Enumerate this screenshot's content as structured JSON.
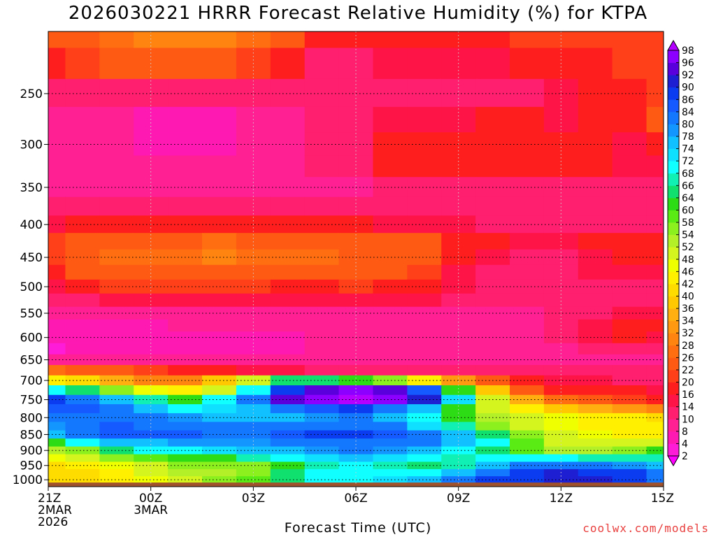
{
  "title": "2026030221 HRRR Forecast Relative Humidity (%) for KTPA",
  "credit": "coolwx.com/models",
  "chart_data": {
    "type": "heatmap",
    "title": "2026030221 HRRR Forecast Relative Humidity (%) for KTPA",
    "xlabel": "Forecast Time (UTC)",
    "ylabel": "",
    "x_hours": [
      0,
      1,
      2,
      3,
      4,
      5,
      6,
      7,
      8,
      9,
      10,
      11,
      12,
      13,
      14,
      15,
      16,
      17,
      18
    ],
    "xlim": [
      0,
      18
    ],
    "y_levels": [
      200,
      225,
      250,
      275,
      300,
      325,
      350,
      375,
      400,
      425,
      450,
      475,
      500,
      525,
      550,
      575,
      600,
      625,
      650,
      675,
      700,
      725,
      750,
      775,
      800,
      825,
      850,
      875,
      900,
      925,
      950,
      975,
      1000
    ],
    "ylim": [
      200,
      1025
    ],
    "x_ticks": [
      {
        "h": 0,
        "lines": [
          "21Z",
          "2MAR",
          "2026"
        ]
      },
      {
        "h": 3,
        "lines": [
          "00Z",
          "3MAR"
        ]
      },
      {
        "h": 6,
        "lines": [
          "03Z"
        ]
      },
      {
        "h": 9,
        "lines": [
          "06Z"
        ]
      },
      {
        "h": 12,
        "lines": [
          "09Z"
        ]
      },
      {
        "h": 15,
        "lines": [
          "12Z"
        ]
      },
      {
        "h": 18,
        "lines": [
          "15Z"
        ]
      }
    ],
    "y_ticks": [
      250,
      300,
      350,
      400,
      450,
      500,
      550,
      600,
      650,
      700,
      750,
      800,
      850,
      900,
      950,
      1000
    ],
    "y_tick_labels": [
      "250",
      "300",
      "350",
      "400",
      "450",
      "500",
      "550",
      "600",
      "650",
      "700",
      "750",
      "800",
      "850",
      "900",
      "950",
      "1000"
    ],
    "grid": true,
    "ground_level": 1010,
    "values": [
      [
        22,
        24,
        26,
        28,
        28,
        28,
        26,
        22,
        18,
        16,
        16,
        16,
        16,
        18,
        20,
        20,
        20,
        20,
        20
      ],
      [
        18,
        20,
        22,
        24,
        24,
        22,
        20,
        16,
        12,
        12,
        14,
        14,
        14,
        14,
        16,
        18,
        18,
        20,
        20
      ],
      [
        10,
        10,
        10,
        10,
        10,
        10,
        10,
        10,
        10,
        10,
        10,
        10,
        10,
        10,
        12,
        14,
        16,
        18,
        20
      ],
      [
        8,
        8,
        8,
        6,
        6,
        6,
        8,
        8,
        10,
        12,
        14,
        14,
        14,
        16,
        16,
        14,
        16,
        18,
        22
      ],
      [
        8,
        8,
        8,
        6,
        5,
        6,
        8,
        8,
        10,
        12,
        18,
        18,
        18,
        18,
        18,
        18,
        16,
        14,
        16
      ],
      [
        8,
        8,
        8,
        8,
        8,
        8,
        8,
        8,
        10,
        12,
        16,
        18,
        18,
        18,
        18,
        18,
        16,
        14,
        14
      ],
      [
        8,
        8,
        8,
        8,
        8,
        8,
        8,
        8,
        8,
        8,
        10,
        10,
        10,
        10,
        10,
        10,
        10,
        10,
        10
      ],
      [
        10,
        10,
        10,
        10,
        10,
        10,
        10,
        10,
        10,
        10,
        10,
        10,
        10,
        10,
        10,
        10,
        10,
        10,
        10
      ],
      [
        14,
        16,
        16,
        16,
        16,
        16,
        16,
        16,
        16,
        16,
        14,
        14,
        14,
        12,
        12,
        12,
        12,
        12,
        12
      ],
      [
        20,
        22,
        22,
        22,
        24,
        26,
        24,
        24,
        22,
        22,
        22,
        22,
        18,
        16,
        14,
        14,
        16,
        18,
        18
      ],
      [
        20,
        24,
        26,
        26,
        26,
        28,
        26,
        26,
        26,
        24,
        24,
        22,
        18,
        14,
        12,
        12,
        14,
        16,
        16
      ],
      [
        18,
        22,
        24,
        24,
        24,
        24,
        24,
        24,
        22,
        22,
        22,
        20,
        14,
        12,
        12,
        12,
        14,
        14,
        14
      ],
      [
        14,
        18,
        20,
        20,
        20,
        20,
        20,
        18,
        18,
        20,
        18,
        18,
        14,
        12,
        10,
        10,
        12,
        12,
        12
      ],
      [
        10,
        12,
        14,
        14,
        14,
        14,
        14,
        14,
        14,
        14,
        14,
        14,
        12,
        10,
        10,
        10,
        10,
        10,
        10
      ],
      [
        8,
        8,
        8,
        8,
        8,
        8,
        8,
        8,
        8,
        8,
        8,
        8,
        8,
        8,
        8,
        10,
        12,
        14,
        14
      ],
      [
        6,
        6,
        6,
        6,
        8,
        8,
        8,
        8,
        8,
        8,
        8,
        8,
        8,
        8,
        8,
        10,
        14,
        18,
        18
      ],
      [
        4,
        4,
        6,
        6,
        6,
        6,
        6,
        6,
        8,
        8,
        8,
        8,
        8,
        8,
        8,
        10,
        14,
        16,
        14
      ],
      [
        2,
        4,
        4,
        6,
        6,
        6,
        6,
        6,
        8,
        8,
        8,
        8,
        8,
        8,
        8,
        8,
        10,
        10,
        10
      ],
      [
        8,
        8,
        8,
        8,
        8,
        8,
        8,
        8,
        8,
        8,
        8,
        8,
        8,
        8,
        8,
        8,
        8,
        8,
        8
      ],
      [
        26,
        24,
        22,
        20,
        18,
        16,
        14,
        14,
        12,
        12,
        12,
        12,
        12,
        10,
        10,
        10,
        10,
        10,
        10
      ],
      [
        44,
        40,
        34,
        30,
        30,
        36,
        50,
        64,
        64,
        62,
        56,
        42,
        32,
        22,
        16,
        14,
        14,
        12,
        12
      ],
      [
        70,
        64,
        54,
        46,
        44,
        50,
        70,
        86,
        94,
        96,
        94,
        84,
        60,
        36,
        24,
        18,
        16,
        16,
        14
      ],
      [
        86,
        82,
        74,
        66,
        60,
        68,
        80,
        92,
        96,
        98,
        96,
        90,
        72,
        48,
        34,
        26,
        22,
        20,
        18
      ],
      [
        84,
        84,
        80,
        74,
        70,
        72,
        76,
        80,
        84,
        86,
        82,
        74,
        60,
        50,
        42,
        36,
        34,
        32,
        30
      ],
      [
        80,
        82,
        82,
        80,
        78,
        76,
        76,
        76,
        78,
        80,
        76,
        68,
        60,
        52,
        48,
        46,
        44,
        42,
        40
      ],
      [
        78,
        82,
        84,
        82,
        82,
        80,
        80,
        80,
        82,
        82,
        80,
        72,
        66,
        56,
        50,
        46,
        44,
        44,
        42
      ],
      [
        74,
        80,
        84,
        84,
        84,
        82,
        82,
        84,
        86,
        86,
        84,
        80,
        74,
        64,
        54,
        48,
        46,
        44,
        44
      ],
      [
        60,
        68,
        74,
        76,
        78,
        78,
        78,
        80,
        82,
        82,
        82,
        80,
        76,
        68,
        58,
        50,
        48,
        48,
        50
      ],
      [
        52,
        56,
        64,
        68,
        70,
        72,
        74,
        76,
        78,
        80,
        78,
        74,
        70,
        64,
        58,
        52,
        52,
        56,
        60
      ],
      [
        46,
        50,
        54,
        58,
        60,
        62,
        66,
        70,
        72,
        74,
        72,
        68,
        66,
        68,
        70,
        68,
        66,
        66,
        66
      ],
      [
        40,
        42,
        46,
        50,
        54,
        54,
        56,
        62,
        66,
        68,
        66,
        64,
        66,
        74,
        80,
        82,
        80,
        78,
        76
      ],
      [
        40,
        40,
        44,
        48,
        52,
        52,
        56,
        64,
        68,
        68,
        70,
        70,
        74,
        82,
        88,
        90,
        88,
        86,
        80
      ],
      [
        40,
        40,
        42,
        46,
        50,
        54,
        58,
        64,
        70,
        70,
        72,
        76,
        80,
        86,
        88,
        90,
        90,
        86,
        80
      ]
    ],
    "colorbar": {
      "levels": [
        2,
        4,
        8,
        10,
        14,
        16,
        20,
        22,
        26,
        28,
        32,
        34,
        36,
        40,
        42,
        46,
        48,
        52,
        54,
        58,
        60,
        64,
        66,
        68,
        72,
        74,
        78,
        80,
        84,
        86,
        90,
        92,
        96,
        98
      ],
      "colors": [
        "#ff00ff",
        "#ff1cd9",
        "#ff19b3",
        "#ff2094",
        "#ff1f6e",
        "#ff1447",
        "#ff1e1e",
        "#ff4018",
        "#ff5a14",
        "#ff6e10",
        "#ff8410",
        "#ff9a10",
        "#ffb010",
        "#ffc800",
        "#ffdc00",
        "#fff000",
        "#f0ff00",
        "#d4f51e",
        "#b4f028",
        "#8cf01e",
        "#5aeb14",
        "#2ddc14",
        "#10e06e",
        "#10f0b4",
        "#10ffff",
        "#10e0ff",
        "#10c0ff",
        "#1496ff",
        "#1478ff",
        "#145aff",
        "#0c3cf0",
        "#1e1ed2",
        "#5a00dc",
        "#8c00ff",
        "#b400ff"
      ]
    }
  }
}
